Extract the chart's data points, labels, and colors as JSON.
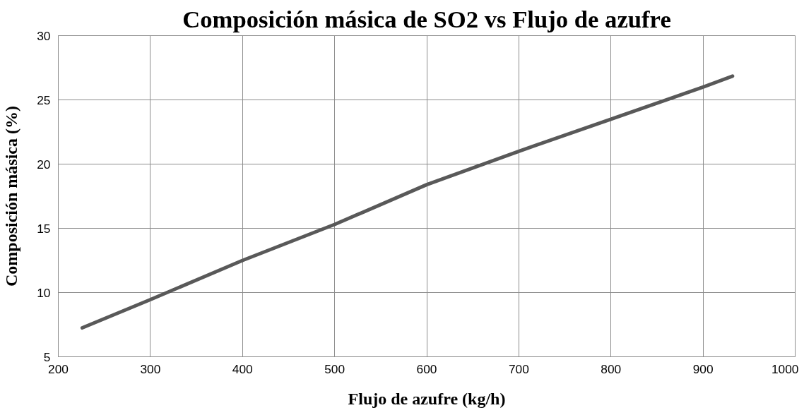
{
  "chart_data": {
    "type": "line",
    "title": "Composición másica de SO2 vs Flujo de azufre",
    "xlabel": "Flujo de azufre (kg/h)",
    "ylabel": "Composición másica (%)",
    "series": [
      {
        "color": "#595959",
        "x": [
          226,
          300,
          400,
          500,
          600,
          700,
          800,
          900,
          932
        ],
        "values": [
          7.25,
          9.45,
          12.5,
          15.3,
          18.4,
          21.0,
          23.5,
          26.0,
          26.85
        ]
      }
    ],
    "xlim": [
      200,
      1000
    ],
    "xticks": [
      200,
      300,
      400,
      500,
      600,
      700,
      800,
      900,
      1000
    ],
    "ylim": [
      5,
      30
    ],
    "yticks": [
      5,
      10,
      15,
      20,
      25,
      30
    ],
    "grid": true,
    "marker": "none",
    "line_style": "solid"
  }
}
